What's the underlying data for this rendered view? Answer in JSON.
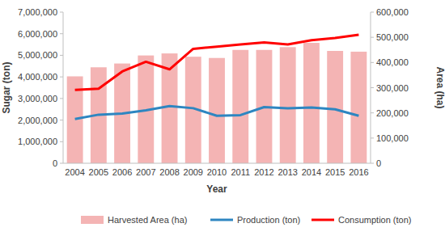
{
  "chart_data": {
    "type": "bar",
    "x_label": "Year",
    "y_label": "Sugar (ton)",
    "y2_label": "Area (ha)",
    "categories": [
      "2004",
      "2005",
      "2006",
      "2007",
      "2008",
      "2009",
      "2010",
      "2011",
      "2012",
      "2013",
      "2014",
      "2015",
      "2016"
    ],
    "series": [
      {
        "name": "Harvested Area (ha)",
        "type": "bar",
        "axis": "y2",
        "color": "#f4b4b4",
        "values": [
          345000,
          381000,
          396000,
          428000,
          436000,
          423000,
          418000,
          450000,
          450000,
          461000,
          478000,
          446000,
          443000
        ]
      },
      {
        "name": "Production (ton)",
        "type": "line",
        "color": "#2e86c1",
        "values": [
          2050000,
          2250000,
          2300000,
          2450000,
          2650000,
          2550000,
          2200000,
          2230000,
          2600000,
          2550000,
          2580000,
          2500000,
          2200000
        ]
      },
      {
        "name": "Consumption (ton)",
        "type": "line",
        "color": "#ff0000",
        "values": [
          3400000,
          3450000,
          4250000,
          4700000,
          4350000,
          5300000,
          5400000,
          5500000,
          5600000,
          5500000,
          5700000,
          5800000,
          5950000
        ]
      }
    ],
    "ylim": [
      0,
      7000000
    ],
    "yticks": [
      0,
      {
        "value": 1000000,
        "label": "1,000,000"
      },
      {
        "value": 2000000,
        "label": "2,000,000"
      },
      {
        "value": 3000000,
        "label": "3,000,000"
      },
      {
        "value": 4000000,
        "label": "4,000,000"
      },
      {
        "value": 5000000,
        "label": "5,000,000"
      },
      {
        "value": 6000000,
        "label": "6,000,000"
      },
      {
        "value": 7000000,
        "label": "7,000,000"
      }
    ],
    "y2lim": [
      0,
      600000
    ],
    "y2ticks": [
      0,
      {
        "value": 100000,
        "label": "100,000"
      },
      {
        "value": 200000,
        "label": "200,000"
      },
      {
        "value": 300000,
        "label": "300,000"
      },
      {
        "value": 400000,
        "label": "400,000"
      },
      {
        "value": 500000,
        "label": "500,000"
      },
      {
        "value": 600000,
        "label": "600,000"
      }
    ],
    "grid": false,
    "legend": "bottom"
  }
}
